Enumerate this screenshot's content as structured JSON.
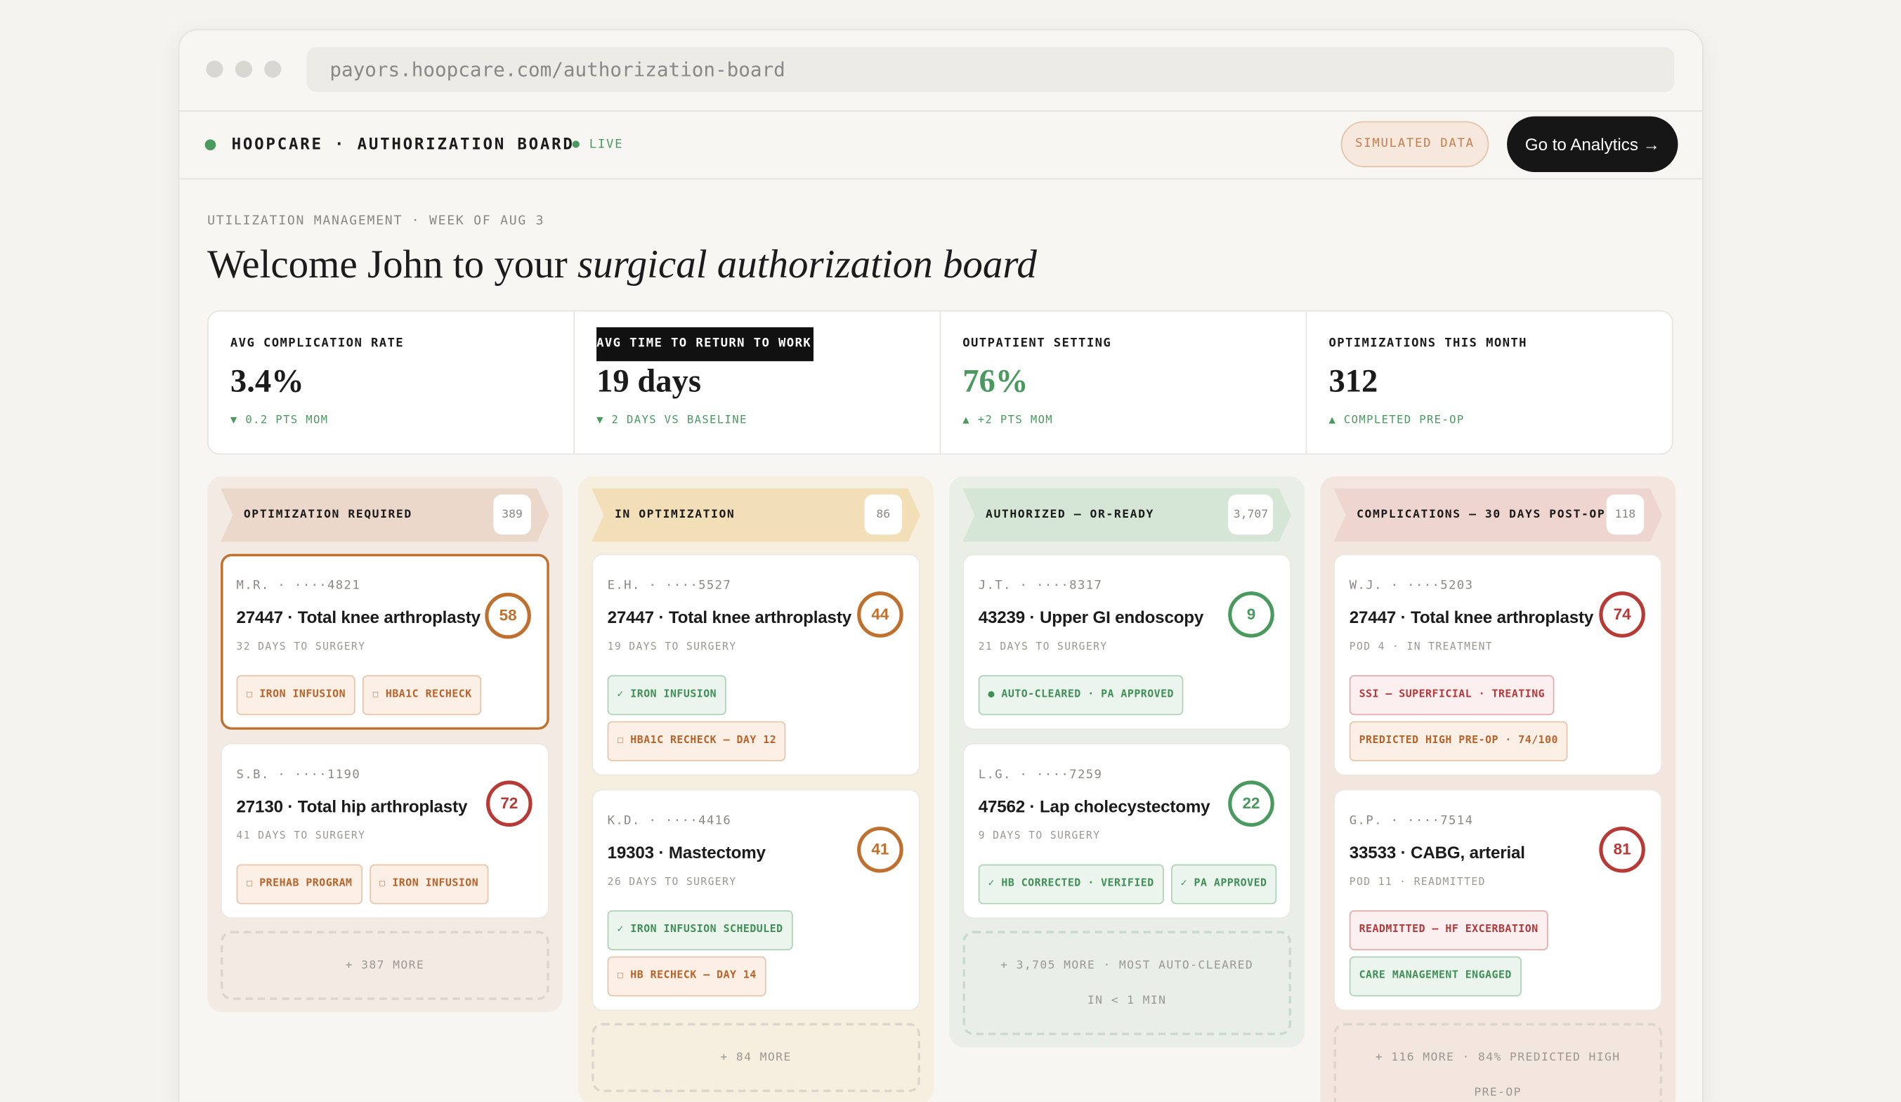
{
  "browser": {
    "url": "payors.hoopcare.com/authorization-board"
  },
  "header": {
    "brand": "HOOPCARE · AUTHORIZATION BOARD",
    "status": "LIVE",
    "badge": "SIMULATED DATA",
    "button": "Go to Analytics →"
  },
  "intro": {
    "eyebrow": "UTILIZATION MANAGEMENT · WEEK OF AUG 3",
    "title": "Welcome John to your ",
    "title_emphasis": "surgical authorization board"
  },
  "metrics": [
    {
      "label": "AVG COMPLICATION RATE",
      "value": "3.4%",
      "delta": "▼ 0.2 PTS MOM"
    },
    {
      "label": "AVG TIME TO RETURN TO WORK",
      "value": "19 days",
      "delta": "▼ 2 DAYS VS BASELINE"
    },
    {
      "label": "OUTPATIENT SETTING",
      "value": "76%",
      "delta": "▲ +2 PTS MOM",
      "color": "green"
    },
    {
      "label": "OPTIMIZATIONS THIS MONTH",
      "value": "312",
      "delta": "▲ COMPLETED PRE-OP"
    }
  ],
  "columns": [
    {
      "title": "OPTIMIZATION REQUIRED",
      "count": "389",
      "more": "+ 387 MORE",
      "cards": [
        {
          "patient": "M.R. · ····4821",
          "procedure": "27447 · Total knee arthroplasty",
          "timing": "32 DAYS TO SURGERY",
          "score": 58,
          "color": "orange",
          "tag_rows": [
            [
              {
                "text": "☐ IRON INFUSION",
                "color": "orange"
              },
              {
                "text": "☐ HBA1C RECHECK",
                "color": "orange"
              }
            ]
          ]
        },
        {
          "patient": "S.B. · ····1190",
          "procedure": "27130 · Total hip arthroplasty",
          "timing": "41 DAYS TO SURGERY",
          "score": 72,
          "color": "red",
          "tag_rows": [
            [
              {
                "text": "☐ PREHAB PROGRAM",
                "color": "orange"
              },
              {
                "text": "☐ IRON INFUSION",
                "color": "orange"
              }
            ]
          ]
        }
      ]
    },
    {
      "title": "IN OPTIMIZATION",
      "count": "86",
      "more": "+ 84 MORE",
      "cards": [
        {
          "patient": "E.H. · ····5527",
          "procedure": "27447 · Total knee arthroplasty",
          "timing": "19 DAYS TO SURGERY",
          "score": 44,
          "color": "orange",
          "tag_rows": [
            [
              {
                "text": "✓ IRON INFUSION",
                "color": "green"
              }
            ],
            [
              {
                "text": "☐ HBA1C RECHECK — DAY 12",
                "color": "orange"
              }
            ]
          ]
        },
        {
          "patient": "K.D. · ····4416",
          "procedure": "19303 · Mastectomy",
          "timing": "26 DAYS TO SURGERY",
          "score": 41,
          "color": "orange",
          "tag_rows": [
            [
              {
                "text": "✓ IRON INFUSION SCHEDULED",
                "color": "green"
              }
            ],
            [
              {
                "text": "☐ HB RECHECK — DAY 14",
                "color": "orange"
              }
            ]
          ]
        }
      ]
    },
    {
      "title": "AUTHORIZED — OR-READY",
      "count": "3,707",
      "more": "+ 3,705 MORE · MOST AUTO-CLEARED IN < 1 MIN",
      "cards": [
        {
          "patient": "J.T. · ····8317",
          "procedure": "43239 · Upper GI endoscopy",
          "timing": "21 DAYS TO SURGERY",
          "score": 9,
          "color": "green",
          "tag_rows": [
            [
              {
                "text": "● AUTO-CLEARED · PA APPROVED",
                "color": "green"
              }
            ]
          ]
        },
        {
          "patient": "L.G. · ····7259",
          "procedure": "47562 · Lap cholecystectomy",
          "timing": "9 DAYS TO SURGERY",
          "score": 22,
          "color": "green",
          "tag_rows": [
            [
              {
                "text": "✓ HB CORRECTED · VERIFIED",
                "color": "green"
              },
              {
                "text": "✓ PA APPROVED",
                "color": "green"
              }
            ]
          ]
        }
      ]
    },
    {
      "title": "COMPLICATIONS — 30 DAYS POST-OP",
      "count": "118",
      "more": "+ 116 MORE · 84% PREDICTED HIGH PRE-OP",
      "cards": [
        {
          "patient": "W.J. · ····5203",
          "procedure": "27447 · Total knee arthroplasty",
          "timing": "POD 4 · IN TREATMENT",
          "score": 74,
          "color": "red",
          "tag_rows": [
            [
              {
                "text": "SSI — SUPERFICIAL · TREATING",
                "color": "red"
              }
            ],
            [
              {
                "text": "PREDICTED HIGH PRE-OP · 74/100",
                "color": "orange"
              }
            ]
          ]
        },
        {
          "patient": "G.P. · ····7514",
          "procedure": "33533 · CABG, arterial",
          "timing": "POD 11 · READMITTED",
          "score": 81,
          "color": "red",
          "tag_rows": [
            [
              {
                "text": "READMITTED — HF EXCERBATION",
                "color": "red"
              }
            ],
            [
              {
                "text": "CARE MANAGEMENT ENGAGED",
                "color": "green"
              }
            ]
          ]
        }
      ]
    }
  ]
}
